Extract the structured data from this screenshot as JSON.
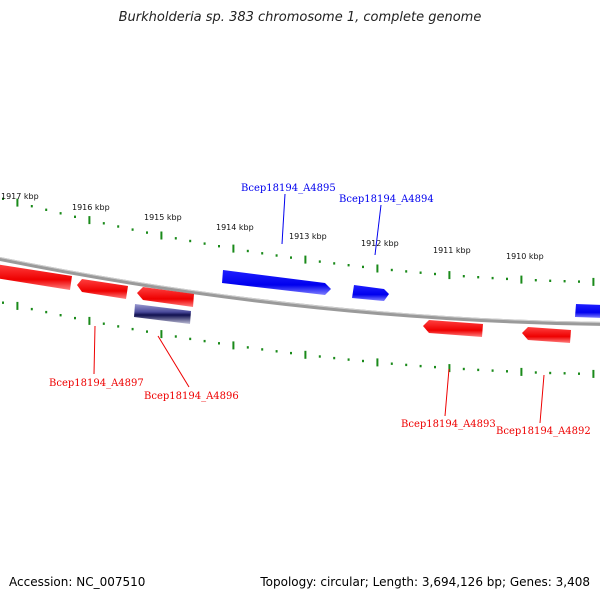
{
  "title": "Burkholderia sp. 383 chromosome 1, complete genome",
  "accession": "Accession: NC_007510",
  "summary": "Topology: circular; Length: 3,694,126 bp; Genes: 3,408",
  "ticks": [
    "1917 kbp",
    "1916 kbp",
    "1915 kbp",
    "1914 kbp",
    "1913 kbp",
    "1912 kbp",
    "1911 kbp",
    "1910 kbp"
  ],
  "genes": [
    {
      "name": "Bcep18194_A4895",
      "strand": "forward",
      "color": "#0000ee"
    },
    {
      "name": "Bcep18194_A4894",
      "strand": "forward",
      "color": "#0000ee"
    },
    {
      "name": "Bcep18194_A4897",
      "strand": "reverse",
      "color": "#ee0000"
    },
    {
      "name": "Bcep18194_A4896",
      "strand": "reverse",
      "color": "#ee0000"
    },
    {
      "name": "Bcep18194_A4893",
      "strand": "reverse",
      "color": "#ee0000"
    },
    {
      "name": "Bcep18194_A4892",
      "strand": "reverse",
      "color": "#ee0000"
    }
  ],
  "colors": {
    "forward": "#0000ee",
    "reverse": "#ee0000",
    "backbone": "#888888",
    "ticks": "#1a8a1a",
    "selected": "#1a1a6e"
  }
}
